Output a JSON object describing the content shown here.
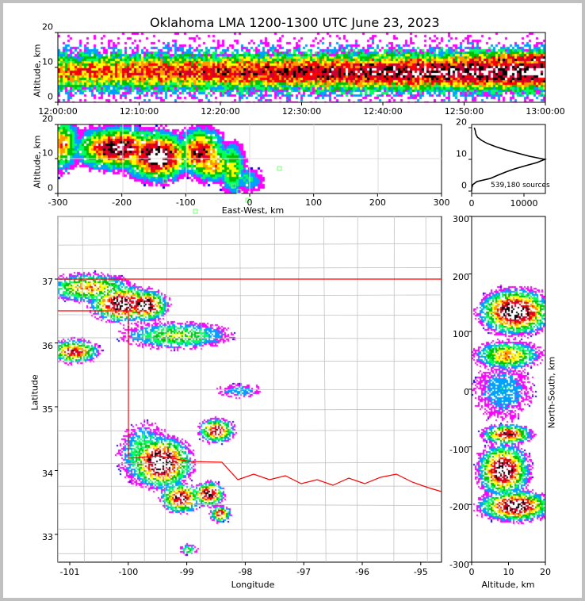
{
  "title": "Oklahoma LMA 1200-1300 UTC June 23, 2023",
  "chart_data": [
    {
      "type": "heatmap",
      "name": "altitude-time",
      "ylabel": "Altitude, km",
      "ylim": [
        0,
        20
      ],
      "yticks": [
        "0",
        "10",
        "20"
      ],
      "xticks": [
        "12:00:00",
        "12:10:00",
        "12:20:00",
        "12:30:00",
        "12:40:00",
        "12:50:00",
        "13:00:00"
      ]
    },
    {
      "type": "heatmap",
      "name": "altitude-eastwest",
      "xlabel": "East-West, km",
      "ylabel": "Altitude, km",
      "xlim": [
        -300,
        300
      ],
      "ylim": [
        0,
        20
      ],
      "xticks": [
        "-300",
        "-200",
        "-100",
        "0",
        "100",
        "200",
        "300"
      ],
      "yticks": [
        "0",
        "10",
        "20"
      ]
    },
    {
      "type": "line",
      "name": "altitude-histogram",
      "xlim": [
        0,
        14000
      ],
      "ylim": [
        0,
        20
      ],
      "xticks": [
        "0",
        "10000"
      ],
      "yticks": [
        "0",
        "10",
        "20"
      ],
      "annotation": "539,180 sources",
      "altitude": [
        0,
        1,
        2,
        3,
        4,
        5,
        6,
        7,
        8,
        9,
        10,
        11,
        12,
        13,
        14,
        15,
        16,
        17,
        18,
        19,
        20
      ],
      "counts": [
        0,
        50,
        200,
        1000,
        3600,
        5000,
        6500,
        8200,
        10300,
        12500,
        14000,
        11000,
        8700,
        6500,
        4600,
        3000,
        1900,
        1100,
        800,
        700,
        500
      ]
    },
    {
      "type": "heatmap",
      "name": "plan-view",
      "xlabel": "Longitude",
      "ylabel": "Latitude",
      "xlim": [
        -101.2,
        -94.65
      ],
      "ylim": [
        32.57,
        37.98
      ],
      "xticks": [
        "-101",
        "-100",
        "-99",
        "-98",
        "-97",
        "-96",
        "-95"
      ],
      "yticks": [
        "33",
        "34",
        "35",
        "36",
        "37"
      ]
    },
    {
      "type": "heatmap",
      "name": "north-south-altitude",
      "xlabel": "Altitude, km",
      "ylabel": "North-South, km",
      "xlim": [
        0,
        20
      ],
      "ylim": [
        -300,
        300
      ],
      "xticks": [
        "0",
        "10",
        "20"
      ],
      "yticks": [
        "-300",
        "-200",
        "-100",
        "0",
        "100",
        "200",
        "300"
      ]
    }
  ]
}
